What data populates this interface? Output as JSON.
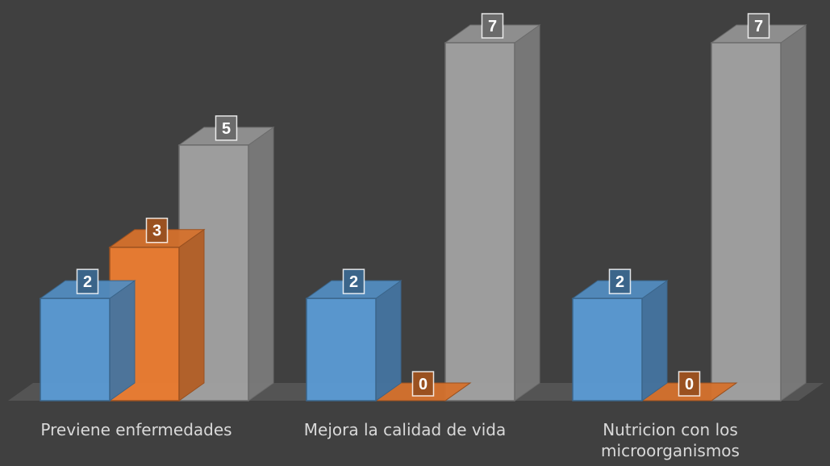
{
  "chart_data": {
    "type": "bar",
    "categories": [
      "Previene enfermedades",
      "Mejora la calidad de vida",
      "Nutricion con los microorganismos"
    ],
    "series": [
      {
        "values": [
          2,
          2,
          2
        ],
        "color": "#5b9bd5"
      },
      {
        "values": [
          3,
          0,
          0
        ],
        "color": "#ed7d31"
      },
      {
        "values": [
          5,
          7,
          7
        ],
        "color": "#a5a5a5"
      }
    ],
    "ylim": [
      0,
      7
    ],
    "grid": false,
    "legend": "none",
    "style": "3d-clustered-column",
    "data_labels": true
  }
}
